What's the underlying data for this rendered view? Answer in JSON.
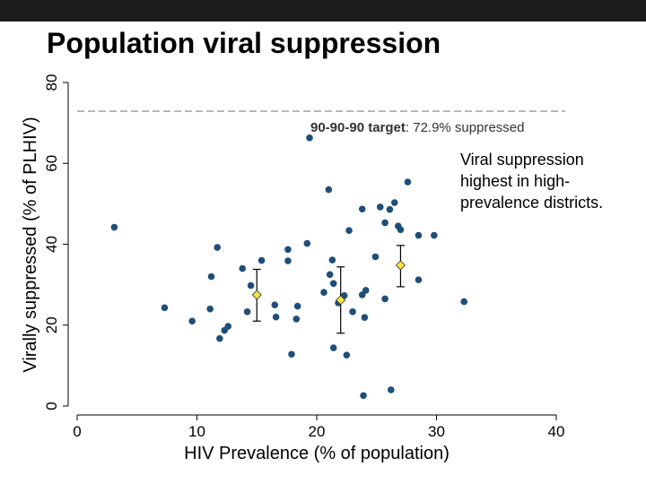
{
  "slide": {
    "title": "Population viral suppression",
    "note": "Viral suppression highest in high-prevalence districts."
  },
  "colors": {
    "point": "#1f4e79",
    "mean_marker": "#f4e542",
    "target_line": "#999999",
    "axis": "#000000"
  },
  "chart_data": {
    "type": "scatter",
    "xlabel": "HIV Prevalence (% of population)",
    "ylabel": "Virally suppressed (% of PLHIV)",
    "xlim": [
      0,
      40
    ],
    "ylim": [
      0,
      80
    ],
    "xticks": [
      0,
      10,
      20,
      30,
      40
    ],
    "yticks": [
      0,
      20,
      40,
      60,
      80
    ],
    "grid": false,
    "target": {
      "value": 72.9,
      "label_bold": "90-90-90 target",
      "label_rest": ": 72.9% suppressed"
    },
    "points": [
      {
        "x": 3.1,
        "y": 44.2
      },
      {
        "x": 7.3,
        "y": 24.3
      },
      {
        "x": 9.6,
        "y": 21.0
      },
      {
        "x": 11.1,
        "y": 24.0
      },
      {
        "x": 11.2,
        "y": 32.0
      },
      {
        "x": 11.7,
        "y": 39.2
      },
      {
        "x": 11.9,
        "y": 16.7
      },
      {
        "x": 12.3,
        "y": 18.7
      },
      {
        "x": 12.6,
        "y": 19.7
      },
      {
        "x": 13.8,
        "y": 34.0
      },
      {
        "x": 14.2,
        "y": 23.3
      },
      {
        "x": 14.5,
        "y": 29.8
      },
      {
        "x": 15.4,
        "y": 36.0
      },
      {
        "x": 16.5,
        "y": 25.0
      },
      {
        "x": 16.6,
        "y": 22.0
      },
      {
        "x": 17.6,
        "y": 38.7
      },
      {
        "x": 17.6,
        "y": 35.9
      },
      {
        "x": 17.9,
        "y": 12.8
      },
      {
        "x": 18.3,
        "y": 21.5
      },
      {
        "x": 18.4,
        "y": 24.7
      },
      {
        "x": 19.2,
        "y": 40.2
      },
      {
        "x": 19.4,
        "y": 66.3
      },
      {
        "x": 20.6,
        "y": 28.1
      },
      {
        "x": 21.0,
        "y": 53.5
      },
      {
        "x": 21.1,
        "y": 32.5
      },
      {
        "x": 21.3,
        "y": 36.1
      },
      {
        "x": 21.4,
        "y": 30.3
      },
      {
        "x": 21.4,
        "y": 14.4
      },
      {
        "x": 21.8,
        "y": 25.5
      },
      {
        "x": 22.3,
        "y": 27.3
      },
      {
        "x": 22.5,
        "y": 12.6
      },
      {
        "x": 22.7,
        "y": 43.4
      },
      {
        "x": 23.0,
        "y": 23.3
      },
      {
        "x": 23.8,
        "y": 27.5
      },
      {
        "x": 23.8,
        "y": 48.7
      },
      {
        "x": 24.0,
        "y": 21.9
      },
      {
        "x": 24.1,
        "y": 28.6
      },
      {
        "x": 23.9,
        "y": 2.6
      },
      {
        "x": 24.9,
        "y": 36.9
      },
      {
        "x": 25.3,
        "y": 49.2
      },
      {
        "x": 25.7,
        "y": 26.5
      },
      {
        "x": 25.7,
        "y": 45.3
      },
      {
        "x": 26.1,
        "y": 48.6
      },
      {
        "x": 26.5,
        "y": 50.3
      },
      {
        "x": 26.2,
        "y": 4.0
      },
      {
        "x": 26.8,
        "y": 44.5
      },
      {
        "x": 27.0,
        "y": 43.6
      },
      {
        "x": 27.6,
        "y": 55.4
      },
      {
        "x": 28.5,
        "y": 42.2
      },
      {
        "x": 28.5,
        "y": 31.2
      },
      {
        "x": 29.8,
        "y": 42.2
      },
      {
        "x": 32.3,
        "y": 25.8
      }
    ],
    "group_means": [
      {
        "x": 15.0,
        "y": 27.5,
        "lo": 21.0,
        "hi": 33.8
      },
      {
        "x": 22.0,
        "y": 26.2,
        "lo": 18.0,
        "hi": 34.4
      },
      {
        "x": 27.0,
        "y": 34.8,
        "lo": 29.5,
        "hi": 39.7
      }
    ]
  }
}
